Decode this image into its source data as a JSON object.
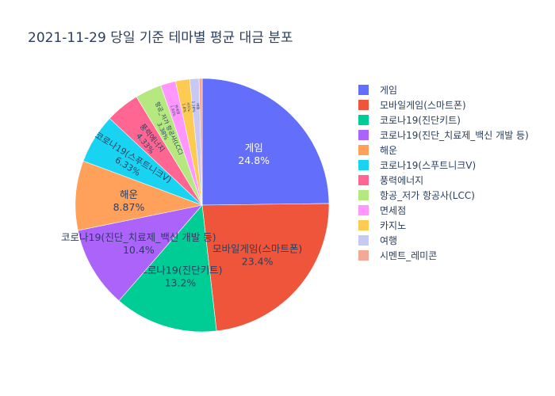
{
  "chart_data": {
    "type": "pie",
    "title": "2021-11-29 당일 기준 테마별 평균 대금 분포",
    "legend_position": "right",
    "slices": [
      {
        "label": "게임",
        "value": 24.8,
        "pct_text": "24.8%",
        "color": "#636efa"
      },
      {
        "label": "모바일게임(스마트폰)",
        "value": 23.4,
        "pct_text": "23.4%",
        "color": "#ef553b"
      },
      {
        "label": "코로나19(진단키트)",
        "value": 13.2,
        "pct_text": "13.2%",
        "color": "#00cc96"
      },
      {
        "label": "코로나19(진단_치료제_백신 개발 등)",
        "value": 10.4,
        "pct_text": "10.4%",
        "color": "#ab63fa"
      },
      {
        "label": "해운",
        "value": 8.87,
        "pct_text": "8.87%",
        "color": "#ffa15a"
      },
      {
        "label": "코로나19(스푸트니크V)",
        "value": 6.33,
        "pct_text": "6.33%",
        "color": "#19d3f3"
      },
      {
        "label": "풍력에너지",
        "value": 4.33,
        "pct_text": "4.33%",
        "color": "#ff6692"
      },
      {
        "label": "항공_저가 항공사(LCC)",
        "value": 3.38,
        "pct_text": "3.38%",
        "color": "#b6e880"
      },
      {
        "label": "면세점",
        "value": 1.93,
        "pct_text": "1.93%",
        "color": "#ff97ff"
      },
      {
        "label": "카지노",
        "value": 1.8,
        "pct_text": "1.8%",
        "color": "#fecb52"
      },
      {
        "label": "여행",
        "value": 1.18,
        "pct_text": "1.18%",
        "color": "#c8c8f5"
      },
      {
        "label": "시멘트_레미콘",
        "value": 0.39,
        "pct_text": "",
        "color": "#f4a896"
      }
    ]
  }
}
